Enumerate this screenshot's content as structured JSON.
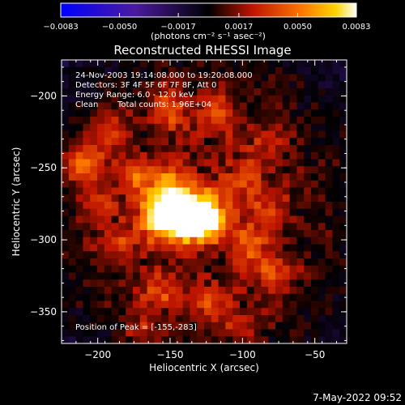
{
  "colorbar": {
    "tick_labels": [
      "-0.0083",
      "-0.0050",
      "-0.0017",
      "0.0017",
      "0.0050",
      "0.0083"
    ],
    "units": "(photons cm⁻² s⁻¹ asec⁻²)",
    "range": [
      -0.0083,
      0.0083
    ]
  },
  "chart_data": {
    "type": "heatmap",
    "title": "Reconstructed RHESSI Image",
    "xlabel": "Heliocentric X (arcsec)",
    "ylabel": "Heliocentric Y (arcsec)",
    "xlim": [
      -225,
      -28
    ],
    "ylim": [
      -372,
      -175
    ],
    "x_ticks": [
      -200,
      -150,
      -100,
      -50
    ],
    "y_ticks": [
      -200,
      -250,
      -300,
      -350
    ],
    "x_tick_labels": [
      "−200",
      "−150",
      "−100",
      "−50"
    ],
    "y_tick_labels": [
      "−200",
      "−250",
      "−300",
      "−350"
    ],
    "peak": {
      "x": -155,
      "y": -283
    },
    "sources": [
      {
        "x": -155,
        "y": -283,
        "value": 0.0083
      },
      {
        "x": -131,
        "y": -282,
        "value": 0.0078
      },
      {
        "x": -142,
        "y": -286,
        "value": 0.006
      },
      {
        "x": -122,
        "y": -287,
        "value": 0.0045
      },
      {
        "x": -150,
        "y": -262,
        "value": 0.0042
      },
      {
        "x": -210,
        "y": -247,
        "value": 0.0048
      },
      {
        "x": -175,
        "y": -255,
        "value": 0.0034
      },
      {
        "x": -118,
        "y": -210,
        "value": 0.0035
      },
      {
        "x": -150,
        "y": -210,
        "value": 0.0034
      },
      {
        "x": -193,
        "y": -225,
        "value": 0.003
      },
      {
        "x": -95,
        "y": -305,
        "value": 0.0032
      },
      {
        "x": -78,
        "y": -325,
        "value": 0.0028
      },
      {
        "x": -158,
        "y": -335,
        "value": 0.0031
      },
      {
        "x": -100,
        "y": -260,
        "value": 0.0026
      },
      {
        "x": -82,
        "y": -280,
        "value": 0.0025
      },
      {
        "x": -186,
        "y": -303,
        "value": 0.0026
      },
      {
        "x": -120,
        "y": -346,
        "value": 0.0025
      },
      {
        "x": -200,
        "y": -275,
        "value": 0.0024
      },
      {
        "x": -100,
        "y": -360,
        "value": 0.002
      },
      {
        "x": -170,
        "y": -360,
        "value": 0.0018
      },
      {
        "x": -85,
        "y": -235,
        "value": 0.0018
      }
    ],
    "annotations": {
      "time": "24-Nov-2003 19:14:08.000 to 19:20:08.000",
      "detectors": "Detectors: 3F 4F 5F 6F 7F 8F, Att 0",
      "energy": "Energy Range: 6.0 - 12.0 keV",
      "method": "Clean",
      "counts": "Total counts: 1.96E+04",
      "peak_label": "Position of Peak = [-155,-283]"
    }
  },
  "footer": {
    "date": "7-May-2022 09:52"
  }
}
